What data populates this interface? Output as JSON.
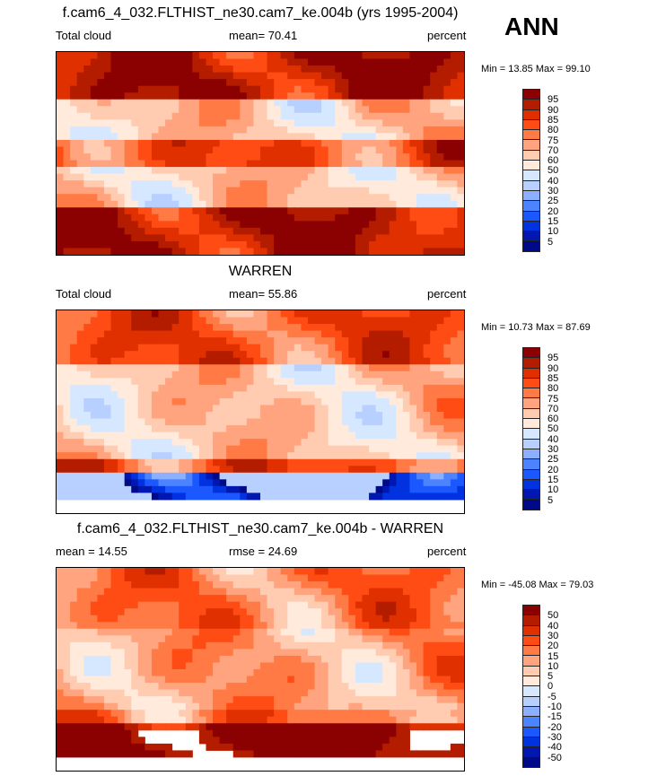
{
  "season": "ANN",
  "panels": [
    {
      "title": "f.cam6_4_032.FLTHIST_ne30.cam7_ke.004b (yrs 1995-2004)",
      "left": "Total cloud",
      "center": "mean=  70.41",
      "right": "percent",
      "minmax": "Min =  13.85 Max =  99.10",
      "levels": [
        "95",
        "90",
        "85",
        "80",
        "75",
        "70",
        "60",
        "50",
        "40",
        "30",
        "25",
        "20",
        "15",
        "10",
        "5"
      ]
    },
    {
      "title": "WARREN",
      "left": "Total cloud",
      "center": "mean=  55.86",
      "right": "percent",
      "minmax": "Min =  10.73 Max =  87.69",
      "levels": [
        "95",
        "90",
        "85",
        "80",
        "75",
        "70",
        "60",
        "50",
        "40",
        "30",
        "25",
        "20",
        "15",
        "10",
        "5"
      ]
    },
    {
      "title": "f.cam6_4_032.FLTHIST_ne30.cam7_ke.004b - WARREN",
      "left": "mean =  14.55",
      "center": "rmse =  24.69",
      "right": "percent",
      "minmax": "Min = -45.08 Max =  79.03",
      "levels": [
        "50",
        "40",
        "30",
        "20",
        "15",
        "10",
        "5",
        "0",
        "-5",
        "-10",
        "-15",
        "-20",
        "-30",
        "-40",
        "-50"
      ]
    }
  ],
  "colormap": [
    "#8b0000",
    "#b41c00",
    "#e03000",
    "#ff4c14",
    "#ff7a44",
    "#ffa47e",
    "#ffccb2",
    "#ffeadc",
    "#d6e8ff",
    "#b8d0ff",
    "#8cb0ff",
    "#4c84ff",
    "#1c58ff",
    "#0032e0",
    "#0018b0",
    "#000a88"
  ]
}
